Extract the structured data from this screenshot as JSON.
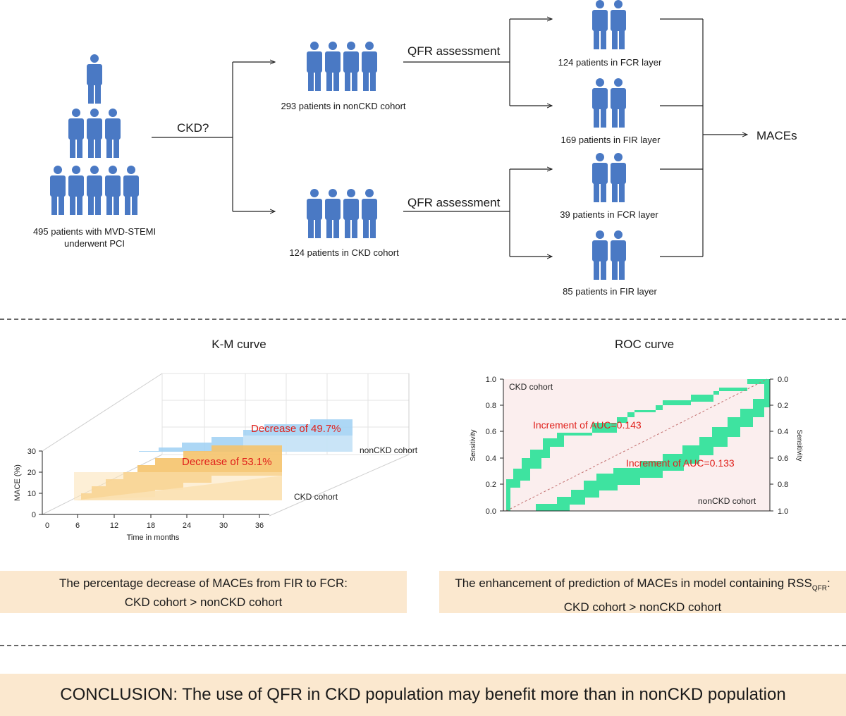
{
  "flow": {
    "total_label": "495 patients with MVD-STEMI",
    "total_label_2": "underwent PCI",
    "ckd_question": "CKD?",
    "noncdk_cohort": "293 patients in nonCKD cohort",
    "ckd_cohort": "124 patients in CKD cohort",
    "qfr_top": "QFR assessment",
    "qfr_bottom": "QFR assessment",
    "layer1": "124 patients in FCR layer",
    "layer2": "169 patients in FIR layer",
    "layer3": "39 patients in FCR layer",
    "layer4": "85 patients in FIR layer",
    "outcome": "MACEs",
    "person_color": "#4a79c4"
  },
  "km": {
    "title": "K-M curve",
    "ylabel": "MACE (%)",
    "xlabel": "Time in months",
    "yticks": [
      "0",
      "10",
      "20",
      "30"
    ],
    "xticks": [
      "0",
      "6",
      "12",
      "18",
      "24",
      "30",
      "36"
    ],
    "nonckd_label": "nonCKD cohort",
    "ckd_label": "CKD cohort",
    "nonckd_decrease": "Decrease of 49.7%",
    "ckd_decrease": "Decrease of 53.1%",
    "nonckd_color": "#9fd0f3",
    "ckd_color": "#f5c36b",
    "annotation_color": "#e0201b"
  },
  "roc": {
    "title": "ROC curve",
    "left_ticks": [
      "1.0",
      "0.8",
      "0.6",
      "0.4",
      "0.2",
      "0.0"
    ],
    "right_ticks": [
      "0.0",
      "0.2",
      "0.4",
      "0.6",
      "0.8",
      "1.0"
    ],
    "left_ylabel": "Sensitivity",
    "right_ylabel": "Sensitivity",
    "ckd_label": "CKD cohort",
    "nonckd_label": "nonCKD cohort",
    "ckd_increment": "Increment of AUC=0.143",
    "nonckd_increment": "Increment of AUC=0.133",
    "fill_color": "#3ee3a0",
    "bg_color": "#fbeeee"
  },
  "summary": {
    "km_line1": "The percentage decrease of MACEs from FIR to FCR:",
    "km_line2": "CKD cohort > nonCKD cohort",
    "roc_line1": "The enhancement of prediction of MACEs in model containing RSS",
    "roc_sub": "QFR",
    "roc_colon": ":",
    "roc_line2": "CKD cohort > nonCKD cohort"
  },
  "conclusion": "CONCLUSION: The use of QFR in CKD population may benefit more than in nonCKD population"
}
